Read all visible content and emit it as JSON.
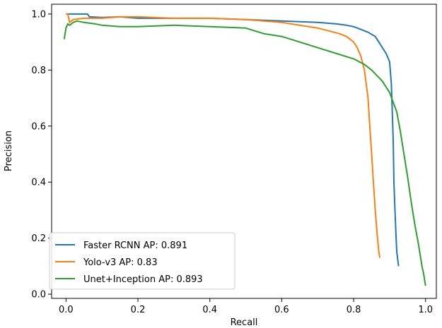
{
  "chart_data": {
    "type": "line",
    "title": "",
    "xlabel": "Recall",
    "ylabel": "Precision",
    "xlim": [
      -0.04,
      1.03
    ],
    "ylim": [
      -0.015,
      1.035
    ],
    "xticks": [
      0.0,
      0.2,
      0.4,
      0.6,
      0.8,
      1.0
    ],
    "xtick_labels": [
      "0.0",
      "0.2",
      "0.4",
      "0.6",
      "0.8",
      "1.0"
    ],
    "yticks": [
      0.0,
      0.2,
      0.4,
      0.6,
      0.8,
      1.0
    ],
    "ytick_labels": [
      "0.0",
      "0.2",
      "0.4",
      "0.6",
      "0.8",
      "1.0"
    ],
    "grid": false,
    "legend_position": "bottom-left",
    "series": [
      {
        "name": "Faster RCNN AP: 0.891",
        "color": "#1f77b4",
        "x": [
          0.0,
          0.01,
          0.06,
          0.065,
          0.1,
          0.15,
          0.2,
          0.3,
          0.4,
          0.5,
          0.6,
          0.7,
          0.75,
          0.78,
          0.8,
          0.82,
          0.84,
          0.86,
          0.87,
          0.88,
          0.89,
          0.9,
          0.905,
          0.91,
          0.912,
          0.915,
          0.918,
          0.92,
          0.925
        ],
        "y": [
          1.0,
          1.0,
          1.0,
          0.99,
          0.988,
          0.99,
          0.985,
          0.985,
          0.985,
          0.98,
          0.975,
          0.97,
          0.965,
          0.96,
          0.955,
          0.945,
          0.935,
          0.92,
          0.9,
          0.88,
          0.86,
          0.83,
          0.75,
          0.55,
          0.4,
          0.3,
          0.2,
          0.15,
          0.1
        ]
      },
      {
        "name": "Yolo-v3 AP: 0.83",
        "color": "#ff7f0e",
        "x": [
          0.0,
          0.005,
          0.01,
          0.02,
          0.05,
          0.1,
          0.15,
          0.2,
          0.3,
          0.4,
          0.5,
          0.55,
          0.6,
          0.65,
          0.7,
          0.73,
          0.76,
          0.78,
          0.8,
          0.81,
          0.82,
          0.83,
          0.84,
          0.845,
          0.85,
          0.855,
          0.86,
          0.865,
          0.87,
          0.873
        ],
        "y": [
          1.0,
          1.0,
          0.97,
          0.98,
          0.985,
          0.985,
          0.99,
          0.99,
          0.985,
          0.985,
          0.98,
          0.975,
          0.97,
          0.96,
          0.95,
          0.94,
          0.93,
          0.92,
          0.9,
          0.88,
          0.85,
          0.8,
          0.7,
          0.6,
          0.5,
          0.4,
          0.3,
          0.22,
          0.15,
          0.13
        ]
      },
      {
        "name": "Unet+Inception AP: 0.893",
        "color": "#2ca02c",
        "x": [
          -0.005,
          0.0,
          0.005,
          0.01,
          0.02,
          0.03,
          0.05,
          0.08,
          0.1,
          0.15,
          0.2,
          0.3,
          0.4,
          0.5,
          0.55,
          0.6,
          0.65,
          0.7,
          0.75,
          0.8,
          0.83,
          0.85,
          0.88,
          0.9,
          0.92,
          0.93,
          0.94,
          0.95,
          0.96,
          0.97,
          0.98,
          0.99,
          0.995,
          1.0
        ],
        "y": [
          0.91,
          0.95,
          0.965,
          0.96,
          0.97,
          0.975,
          0.97,
          0.965,
          0.96,
          0.955,
          0.955,
          0.96,
          0.955,
          0.95,
          0.93,
          0.92,
          0.9,
          0.88,
          0.86,
          0.84,
          0.82,
          0.8,
          0.76,
          0.72,
          0.65,
          0.58,
          0.5,
          0.42,
          0.33,
          0.25,
          0.18,
          0.1,
          0.07,
          0.03
        ]
      }
    ]
  }
}
